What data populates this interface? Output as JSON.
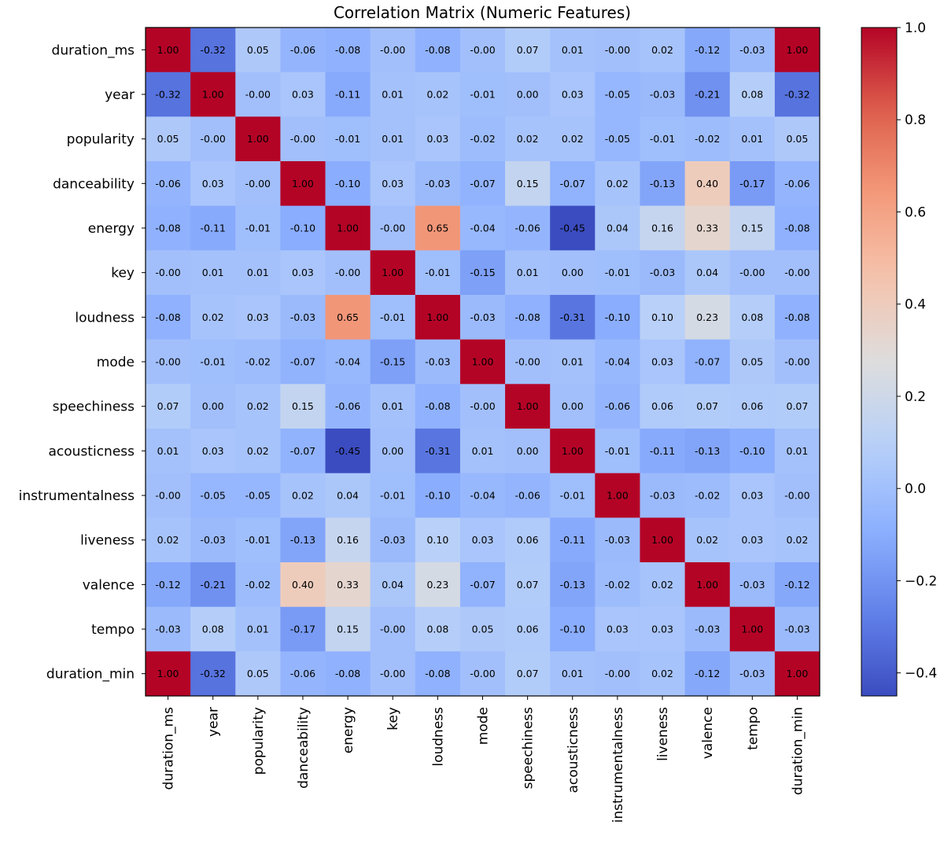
{
  "chart_data": {
    "type": "heatmap",
    "title": "Correlation Matrix (Numeric Features)",
    "colormap": "coolwarm",
    "value_range": [
      -0.45,
      1.0
    ],
    "colorbar": {
      "ticks": [
        1.0,
        0.8,
        0.6,
        0.4,
        0.2,
        0.0,
        -0.2,
        -0.4
      ],
      "tick_labels": [
        "1.0",
        "0.8",
        "0.6",
        "0.4",
        "0.2",
        "0.0",
        "−0.2",
        "−0.4"
      ]
    },
    "labels": [
      "duration_ms",
      "year",
      "popularity",
      "danceability",
      "energy",
      "key",
      "loudness",
      "mode",
      "speechiness",
      "acousticness",
      "instrumentalness",
      "liveness",
      "valence",
      "tempo",
      "duration_min"
    ],
    "values": [
      [
        1.0,
        -0.32,
        0.05,
        -0.06,
        -0.08,
        -0.0,
        -0.08,
        -0.0,
        0.07,
        0.01,
        -0.0,
        0.02,
        -0.12,
        -0.03,
        1.0
      ],
      [
        -0.32,
        1.0,
        -0.0,
        0.03,
        -0.11,
        0.01,
        0.02,
        -0.01,
        0.0,
        0.03,
        -0.05,
        -0.03,
        -0.21,
        0.08,
        -0.32
      ],
      [
        0.05,
        -0.0,
        1.0,
        -0.0,
        -0.01,
        0.01,
        0.03,
        -0.02,
        0.02,
        0.02,
        -0.05,
        -0.01,
        -0.02,
        0.01,
        0.05
      ],
      [
        -0.06,
        0.03,
        -0.0,
        1.0,
        -0.1,
        0.03,
        -0.03,
        -0.07,
        0.15,
        -0.07,
        0.02,
        -0.13,
        0.4,
        -0.17,
        -0.06
      ],
      [
        -0.08,
        -0.11,
        -0.01,
        -0.1,
        1.0,
        -0.0,
        0.65,
        -0.04,
        -0.06,
        -0.45,
        0.04,
        0.16,
        0.33,
        0.15,
        -0.08
      ],
      [
        -0.0,
        0.01,
        0.01,
        0.03,
        -0.0,
        1.0,
        -0.01,
        -0.15,
        0.01,
        0.0,
        -0.01,
        -0.03,
        0.04,
        -0.0,
        -0.0
      ],
      [
        -0.08,
        0.02,
        0.03,
        -0.03,
        0.65,
        -0.01,
        1.0,
        -0.03,
        -0.08,
        -0.31,
        -0.1,
        0.1,
        0.23,
        0.08,
        -0.08
      ],
      [
        -0.0,
        -0.01,
        -0.02,
        -0.07,
        -0.04,
        -0.15,
        -0.03,
        1.0,
        -0.0,
        0.01,
        -0.04,
        0.03,
        -0.07,
        0.05,
        -0.0
      ],
      [
        0.07,
        0.0,
        0.02,
        0.15,
        -0.06,
        0.01,
        -0.08,
        -0.0,
        1.0,
        0.0,
        -0.06,
        0.06,
        0.07,
        0.06,
        0.07
      ],
      [
        0.01,
        0.03,
        0.02,
        -0.07,
        -0.45,
        0.0,
        -0.31,
        0.01,
        0.0,
        1.0,
        -0.01,
        -0.11,
        -0.13,
        -0.1,
        0.01
      ],
      [
        -0.0,
        -0.05,
        -0.05,
        0.02,
        0.04,
        -0.01,
        -0.1,
        -0.04,
        -0.06,
        -0.01,
        1.0,
        -0.03,
        -0.02,
        0.03,
        -0.0
      ],
      [
        0.02,
        -0.03,
        -0.01,
        -0.13,
        0.16,
        -0.03,
        0.1,
        0.03,
        0.06,
        -0.11,
        -0.03,
        1.0,
        0.02,
        0.03,
        0.02
      ],
      [
        -0.12,
        -0.21,
        -0.02,
        0.4,
        0.33,
        0.04,
        0.23,
        -0.07,
        0.07,
        -0.13,
        -0.02,
        0.02,
        1.0,
        -0.03,
        -0.12
      ],
      [
        -0.03,
        0.08,
        0.01,
        -0.17,
        0.15,
        -0.0,
        0.08,
        0.05,
        0.06,
        -0.1,
        0.03,
        0.03,
        -0.03,
        1.0,
        -0.03
      ],
      [
        1.0,
        -0.32,
        0.05,
        -0.06,
        -0.08,
        -0.0,
        -0.08,
        -0.0,
        0.07,
        0.01,
        -0.0,
        0.02,
        -0.12,
        -0.03,
        1.0
      ]
    ]
  }
}
